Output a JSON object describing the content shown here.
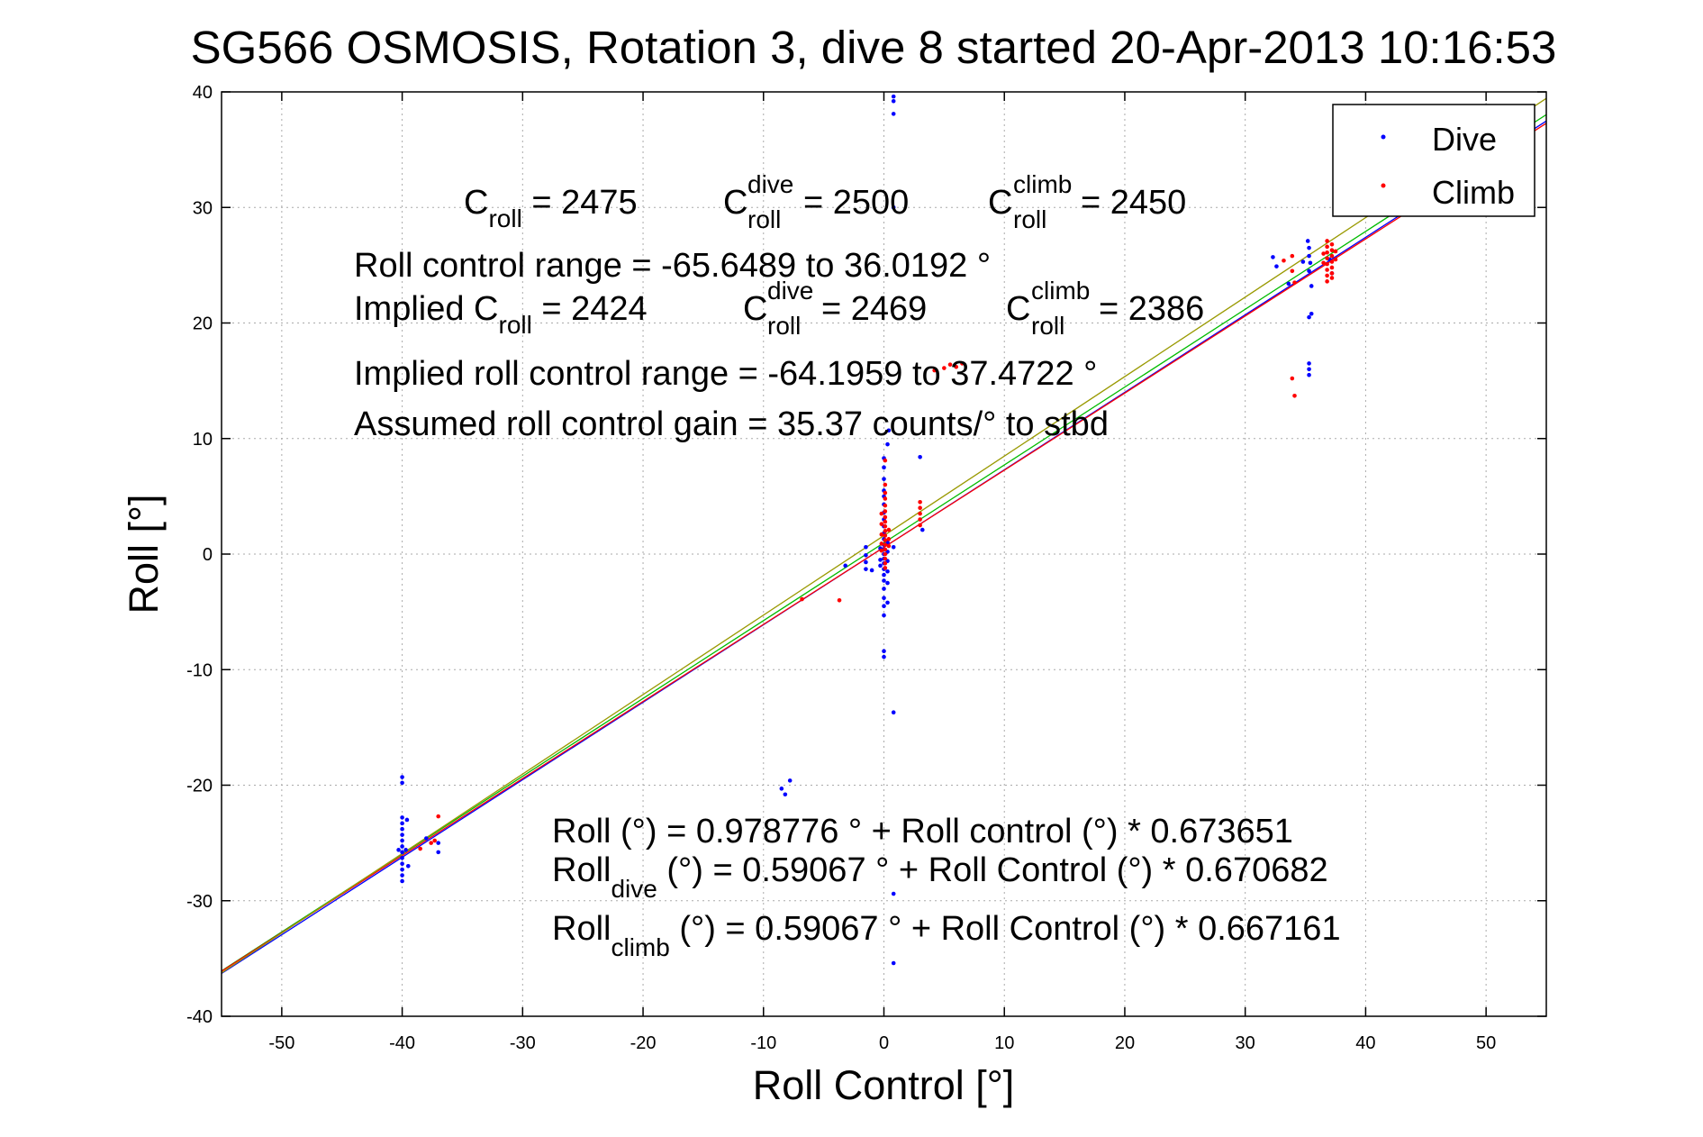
{
  "chart_data": {
    "type": "scatter",
    "title": "SG566 OSMOSIS, Rotation 3, dive 8 started 20-Apr-2013 10:16:53",
    "xlabel": "Roll Control [°]",
    "ylabel": "Roll [°]",
    "xlim": [
      -55,
      55
    ],
    "ylim": [
      -40,
      40
    ],
    "xticks": [
      -50,
      -40,
      -30,
      -20,
      -10,
      0,
      10,
      20,
      30,
      40,
      50
    ],
    "yticks": [
      -40,
      -30,
      -20,
      -10,
      0,
      10,
      20,
      30,
      40
    ],
    "grid": true,
    "legend": {
      "position": "top-right",
      "entries": [
        {
          "label": "Dive",
          "color": "#0000ff"
        },
        {
          "label": "Climb",
          "color": "#ff0000"
        }
      ]
    },
    "annotations": {
      "c_roll": {
        "base": "C",
        "sub": "roll",
        "value": " = 2475"
      },
      "c_roll_dive": {
        "base": "C",
        "sup": "dive",
        "sub": "roll",
        "value": " = 2500"
      },
      "c_roll_climb": {
        "base": "C",
        "sup": "climb",
        "sub": "roll",
        "value": " = 2450"
      },
      "roll_control_range": "Roll control range = -65.6489 to 36.0192 °",
      "implied_c_roll": {
        "base": "Implied C",
        "sub": "roll",
        "value": " = 2424"
      },
      "implied_c_roll_dive": {
        "base": "C",
        "sup": "dive",
        "sub": "roll",
        "value": " = 2469"
      },
      "implied_c_roll_climb": {
        "base": "C",
        "sup": "climb",
        "sub": "roll",
        "value": " = 2386"
      },
      "implied_range": "Implied roll control range = -64.1959 to 37.4722 °",
      "assumed_gain": "Assumed roll control gain = 35.37 counts/° to stbd",
      "fit_all": "Roll (°) = 0.978776 ° + Roll control (°) * 0.673651",
      "fit_dive": {
        "base": "Roll",
        "sub": "dive",
        "rest": " (°) = 0.59067 ° + Roll Control (°) * 0.670682"
      },
      "fit_climb": {
        "base": "Roll",
        "sub": "climb",
        "rest": " (°) = 0.59067 ° + Roll Control (°) * 0.667161"
      }
    },
    "fit_lines": [
      {
        "name": "all",
        "intercept": 0.978776,
        "slope": 0.673651,
        "color": "#00bb00"
      },
      {
        "name": "dive",
        "intercept": 0.59067,
        "slope": 0.670682,
        "color": "#0000ff"
      },
      {
        "name": "climb",
        "intercept": 0.59067,
        "slope": 0.667161,
        "color": "#ff0000"
      },
      {
        "name": "model",
        "intercept": 1.6,
        "slope": 0.688,
        "color": "#999900"
      }
    ],
    "series": [
      {
        "name": "Dive",
        "color": "#0000ff",
        "points": [
          [
            0.8,
            39.6
          ],
          [
            0.8,
            39.2
          ],
          [
            0.8,
            38.1
          ],
          [
            0.8,
            30.0
          ],
          [
            -40,
            -19.3
          ],
          [
            -40,
            -19.8
          ],
          [
            -40,
            -22.8
          ],
          [
            -40,
            -23.3
          ],
          [
            -40,
            -23.8
          ],
          [
            -40,
            -24.3
          ],
          [
            -40,
            -24.8
          ],
          [
            -40,
            -25.3
          ],
          [
            -40,
            -25.8
          ],
          [
            -40,
            -26.3
          ],
          [
            -40,
            -26.8
          ],
          [
            -40,
            -27.3
          ],
          [
            -40,
            -27.8
          ],
          [
            -40,
            -28.3
          ],
          [
            -40.3,
            -25.6
          ],
          [
            -39.7,
            -25.6
          ],
          [
            -39.6,
            -23.0
          ],
          [
            -39.5,
            -27.0
          ],
          [
            -37,
            -25.0
          ],
          [
            -37,
            -25.8
          ],
          [
            -38,
            -24.6
          ],
          [
            -8.5,
            -20.3
          ],
          [
            -8.2,
            -20.8
          ],
          [
            -7.8,
            -19.6
          ],
          [
            32.3,
            25.7
          ],
          [
            32.6,
            24.9
          ],
          [
            33.6,
            23.4
          ],
          [
            34.8,
            25.3
          ],
          [
            35.2,
            27.1
          ],
          [
            35.3,
            26.5
          ],
          [
            35.3,
            25.8
          ],
          [
            35.4,
            25.2
          ],
          [
            35.3,
            24.5
          ],
          [
            35.5,
            23.2
          ],
          [
            35.5,
            20.8
          ],
          [
            35.3,
            20.5
          ],
          [
            35.3,
            16.5
          ],
          [
            35.3,
            16.0
          ],
          [
            35.3,
            15.5
          ],
          [
            37.0,
            25.5
          ],
          [
            37.2,
            24.3
          ],
          [
            3.0,
            8.4
          ],
          [
            3.2,
            2.1
          ],
          [
            0.4,
            10.7
          ],
          [
            0.3,
            9.5
          ],
          [
            0,
            8.3
          ],
          [
            0,
            7.5
          ],
          [
            0,
            6.5
          ],
          [
            0,
            5.5
          ],
          [
            0,
            5.0
          ],
          [
            0,
            4.3
          ],
          [
            0,
            3.6
          ],
          [
            0,
            3.0
          ],
          [
            0,
            2.4
          ],
          [
            0,
            1.8
          ],
          [
            0,
            1.3
          ],
          [
            0,
            0.8
          ],
          [
            0,
            0.4
          ],
          [
            0,
            0
          ],
          [
            0,
            -0.4
          ],
          [
            0,
            -0.8
          ],
          [
            0,
            -1.3
          ],
          [
            0,
            -1.8
          ],
          [
            0,
            -2.3
          ],
          [
            0,
            -3.0
          ],
          [
            0,
            -3.8
          ],
          [
            0,
            -4.5
          ],
          [
            0,
            -5.3
          ],
          [
            0,
            -8.4
          ],
          [
            0,
            -8.9
          ],
          [
            -0.3,
            0.5
          ],
          [
            -0.3,
            -0.5
          ],
          [
            -0.3,
            -1.0
          ],
          [
            0.3,
            1.0
          ],
          [
            0.3,
            0.2
          ],
          [
            0.3,
            -0.6
          ],
          [
            0.3,
            -1.5
          ],
          [
            0.3,
            -2.5
          ],
          [
            0.3,
            -4.2
          ],
          [
            0.8,
            0.6
          ],
          [
            0.8,
            -13.7
          ],
          [
            0.8,
            -29.4
          ],
          [
            0.8,
            -35.4
          ],
          [
            -1.5,
            0.6
          ],
          [
            -1.5,
            -0.1
          ],
          [
            -1.5,
            -0.7
          ],
          [
            -1.5,
            -1.3
          ],
          [
            -3.2,
            -1.0
          ],
          [
            -1.0,
            -1.4
          ]
        ]
      },
      {
        "name": "Climb",
        "color": "#ff0000",
        "points": [
          [
            -37,
            -22.7
          ],
          [
            -37.3,
            -24.8
          ],
          [
            -37.6,
            -25.0
          ],
          [
            -38.5,
            -25.5
          ],
          [
            -3.7,
            -4.0
          ],
          [
            -6.8,
            -3.9
          ],
          [
            33.2,
            25.4
          ],
          [
            33.9,
            25.8
          ],
          [
            33.9,
            24.5
          ],
          [
            34.1,
            23.5
          ],
          [
            33.9,
            15.2
          ],
          [
            34.1,
            13.7
          ],
          [
            36.8,
            27.1
          ],
          [
            36.8,
            26.6
          ],
          [
            36.8,
            26.1
          ],
          [
            36.8,
            25.6
          ],
          [
            36.8,
            25.1
          ],
          [
            36.8,
            24.6
          ],
          [
            36.8,
            24.1
          ],
          [
            36.8,
            23.6
          ],
          [
            37.2,
            26.8
          ],
          [
            37.2,
            26.3
          ],
          [
            37.2,
            25.8
          ],
          [
            37.2,
            25.3
          ],
          [
            37.2,
            24.8
          ],
          [
            37.2,
            24.3
          ],
          [
            37.2,
            23.9
          ],
          [
            36.5,
            26.0
          ],
          [
            36.5,
            25.2
          ],
          [
            37.5,
            26.2
          ],
          [
            37.5,
            25.5
          ],
          [
            4.2,
            15.9
          ],
          [
            5.0,
            16.1
          ],
          [
            5.5,
            16.4
          ],
          [
            6.0,
            16.2
          ],
          [
            6.5,
            16.5
          ],
          [
            3.0,
            4.5
          ],
          [
            3.0,
            4.0
          ],
          [
            3.0,
            3.5
          ],
          [
            3.0,
            3.0
          ],
          [
            3.0,
            2.5
          ],
          [
            0.1,
            8.1
          ],
          [
            0.1,
            6.0
          ],
          [
            0.1,
            5.3
          ],
          [
            0.1,
            4.8
          ],
          [
            0.1,
            4.2
          ],
          [
            0.1,
            3.7
          ],
          [
            0.1,
            3.2
          ],
          [
            0.1,
            2.8
          ],
          [
            0.1,
            2.4
          ],
          [
            0.1,
            2.0
          ],
          [
            0.1,
            1.6
          ],
          [
            0.1,
            1.2
          ],
          [
            0.1,
            0.8
          ],
          [
            0.1,
            0.4
          ],
          [
            0.1,
            0.0
          ],
          [
            0.1,
            -0.4
          ],
          [
            0.1,
            -0.8
          ],
          [
            0.1,
            -1.2
          ],
          [
            -0.2,
            3.5
          ],
          [
            -0.2,
            2.6
          ],
          [
            -0.2,
            1.7
          ],
          [
            -0.2,
            0.9
          ],
          [
            -0.2,
            0.3
          ],
          [
            0.4,
            2.1
          ],
          [
            0.4,
            1.3
          ],
          [
            0.4,
            0.7
          ]
        ]
      }
    ]
  }
}
